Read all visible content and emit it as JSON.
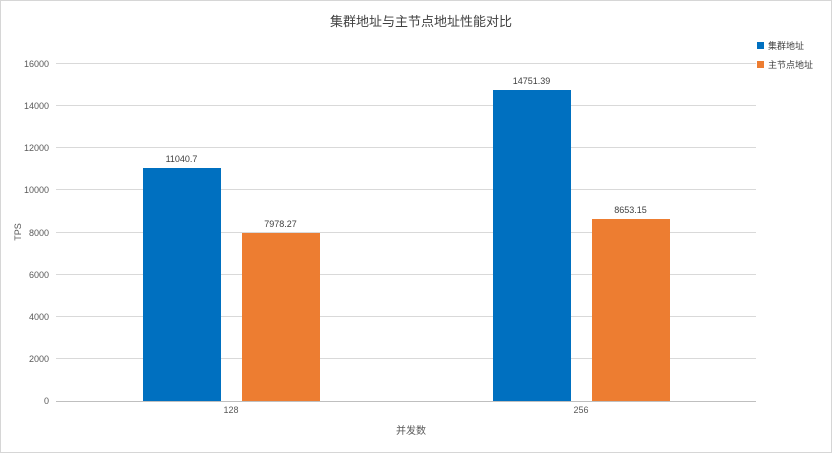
{
  "chart_data": {
    "type": "bar",
    "title": "集群地址与主节点地址性能对比",
    "xlabel": "并发数",
    "ylabel": "TPS",
    "categories": [
      "128",
      "256"
    ],
    "series": [
      {
        "name": "集群地址",
        "slug": "cluster-address",
        "color": "#0070C0",
        "values": [
          11040.7,
          14751.39
        ],
        "labels": [
          "11040.7",
          "14751.39"
        ]
      },
      {
        "name": "主节点地址",
        "slug": "master-node-address",
        "color": "#ED7D31",
        "values": [
          7978.27,
          8653.15
        ],
        "labels": [
          "7978.27",
          "8653.15"
        ]
      }
    ],
    "ylim": [
      0,
      16000
    ],
    "ytick_step": 2000,
    "grid": true,
    "legend_position": "top-right",
    "colors": {
      "grid": "#D9D9D9",
      "axis": "#BFBFBF",
      "tick_text": "#595959",
      "label_text": "#404040",
      "title_text": "#404040",
      "background": "#FFFFFF",
      "border": "#D6D6D6"
    }
  }
}
